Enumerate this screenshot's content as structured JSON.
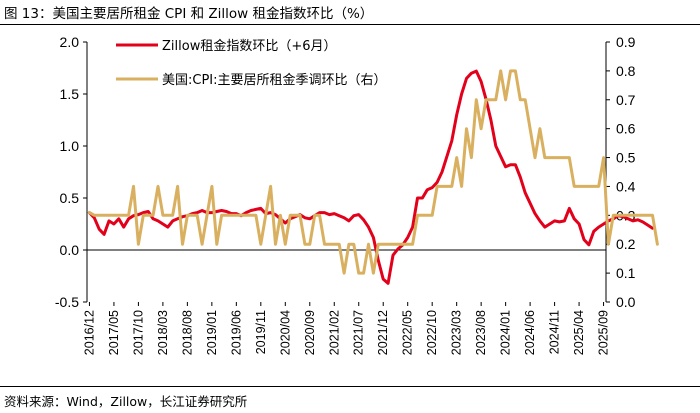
{
  "figure": {
    "title": "图 13：美国主要居所租金 CPI 和 Zillow 租金指数环比（%）",
    "source": "资料来源：Wind，Zillow，长江证券研究所"
  },
  "chart_data": {
    "type": "line",
    "title": "美国主要居所租金 CPI 和 Zillow 租金指数环比（%）",
    "x_tick_labels": [
      "2016/12",
      "2017/05",
      "2017/10",
      "2018/03",
      "2018/08",
      "2019/01",
      "2019/06",
      "2019/11",
      "2020/04",
      "2020/09",
      "2021/02",
      "2021/07",
      "2021/12",
      "2022/05",
      "2022/10",
      "2023/03",
      "2023/08",
      "2024/01",
      "2024/06",
      "2024/11",
      "2025/04",
      "2025/09"
    ],
    "x_start": "2016/12",
    "x_end": "2025/10",
    "y_left": {
      "range": [
        -0.5,
        2.0
      ],
      "ticks": [
        "-0.5",
        "0.0",
        "0.5",
        "1.0",
        "1.5",
        "2.0"
      ]
    },
    "y_right": {
      "range": [
        0.0,
        0.9
      ],
      "ticks": [
        "0.0",
        "0.1",
        "0.2",
        "0.3",
        "0.4",
        "0.5",
        "0.6",
        "0.7",
        "0.8",
        "0.9"
      ]
    },
    "legend": [
      "Zillow租金指数环比（+6月）",
      "美国:CPI:主要居所租金季调环比（右）"
    ],
    "series": [
      {
        "name": "Zillow租金指数环比（+6月）",
        "axis": "left",
        "color": "#e2001a",
        "start_month": 0,
        "values": [
          0.36,
          0.31,
          0.2,
          0.15,
          0.28,
          0.25,
          0.3,
          0.22,
          0.3,
          0.33,
          0.34,
          0.36,
          0.37,
          0.3,
          0.28,
          0.25,
          0.22,
          0.28,
          0.3,
          0.32,
          0.33,
          0.35,
          0.36,
          0.38,
          0.36,
          0.36,
          0.37,
          0.38,
          0.37,
          0.35,
          0.35,
          0.33,
          0.36,
          0.38,
          0.39,
          0.4,
          0.35,
          0.36,
          0.34,
          0.3,
          0.26,
          0.3,
          0.32,
          0.34,
          0.31,
          0.3,
          0.33,
          0.36,
          0.36,
          0.34,
          0.35,
          0.33,
          0.31,
          0.28,
          0.33,
          0.34,
          0.29,
          0.22,
          0.12,
          -0.1,
          -0.28,
          -0.32,
          -0.05,
          0.01,
          0.05,
          0.12,
          0.22,
          0.5,
          0.5,
          0.58,
          0.6,
          0.65,
          0.75,
          0.9,
          1.05,
          1.3,
          1.5,
          1.65,
          1.7,
          1.72,
          1.62,
          1.45,
          1.25,
          1.0,
          0.9,
          0.8,
          0.82,
          0.82,
          0.7,
          0.55,
          0.45,
          0.35,
          0.28,
          0.22,
          0.25,
          0.28,
          0.27,
          0.28,
          0.4,
          0.3,
          0.25,
          0.1,
          0.05,
          0.18,
          0.22,
          0.25,
          0.28,
          0.3,
          0.33,
          0.32,
          0.3,
          0.28,
          0.29,
          0.27,
          0.24,
          0.21
        ]
      },
      {
        "name": "美国:CPI:主要居所租金季调环比（右）",
        "axis": "right",
        "color": "#d9b060",
        "start_month": 0,
        "values": [
          0.31,
          0.3,
          0.3,
          0.3,
          0.3,
          0.3,
          0.3,
          0.3,
          0.3,
          0.4,
          0.2,
          0.3,
          0.3,
          0.3,
          0.4,
          0.3,
          0.3,
          0.3,
          0.4,
          0.2,
          0.3,
          0.3,
          0.3,
          0.2,
          0.3,
          0.4,
          0.2,
          0.3,
          0.3,
          0.3,
          0.3,
          0.3,
          0.3,
          0.3,
          0.3,
          0.2,
          0.3,
          0.4,
          0.2,
          0.3,
          0.2,
          0.3,
          0.3,
          0.3,
          0.2,
          0.2,
          0.3,
          0.3,
          0.2,
          0.2,
          0.2,
          0.2,
          0.1,
          0.2,
          0.2,
          0.1,
          0.1,
          0.2,
          0.1,
          0.2,
          0.2,
          0.2,
          0.2,
          0.2,
          0.2,
          0.2,
          0.2,
          0.3,
          0.3,
          0.3,
          0.3,
          0.4,
          0.4,
          0.4,
          0.4,
          0.5,
          0.4,
          0.6,
          0.5,
          0.7,
          0.6,
          0.7,
          0.7,
          0.7,
          0.8,
          0.7,
          0.8,
          0.8,
          0.7,
          0.7,
          0.6,
          0.5,
          0.6,
          0.5,
          0.5,
          0.5,
          0.5,
          0.5,
          0.5,
          0.4,
          0.4,
          0.4,
          0.4,
          0.4,
          0.4,
          0.5,
          0.2,
          0.3,
          0.3,
          0.3,
          0.3,
          0.3,
          0.3,
          0.3,
          0.3,
          0.3,
          0.2
        ]
      }
    ]
  }
}
